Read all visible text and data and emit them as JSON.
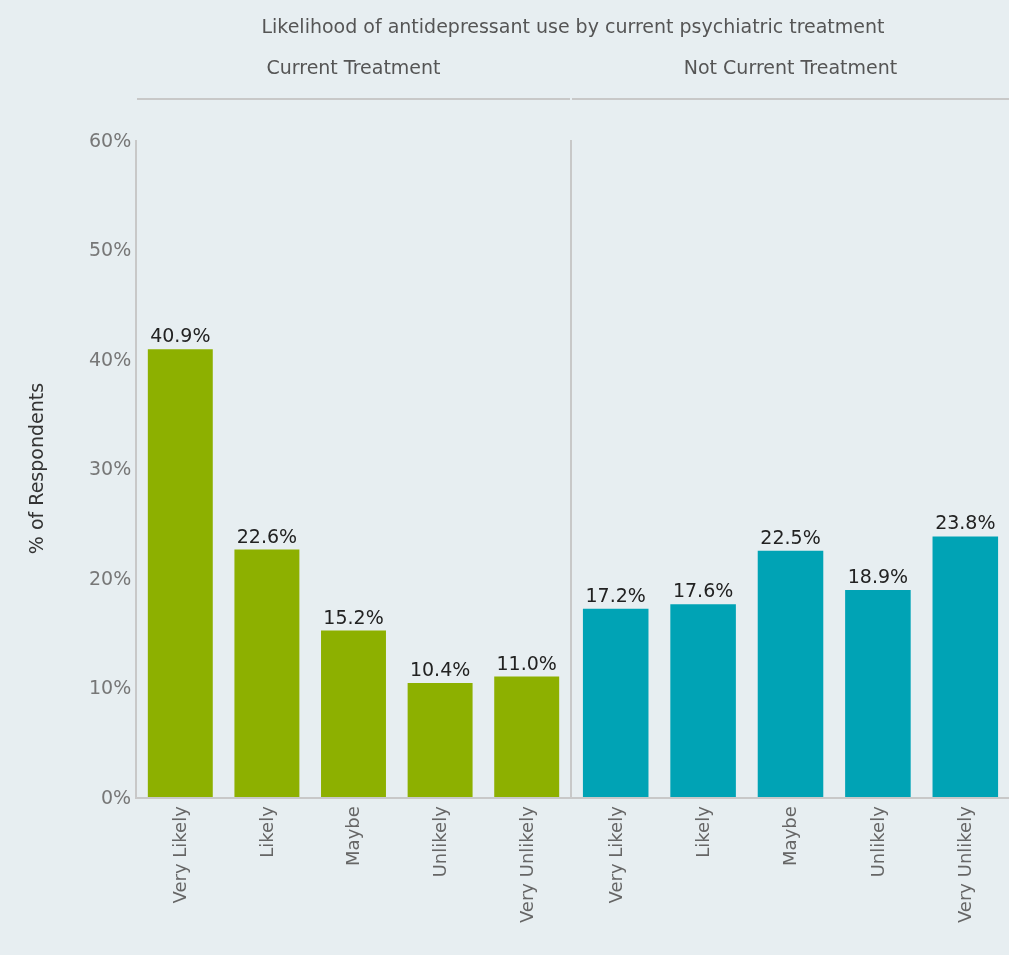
{
  "chart_data": [
    {
      "type": "bar",
      "title": "Likelihood of antidepressant use by current psychiatric treatment",
      "subtitle": "Current Treatment",
      "ylabel": "% of Respondents",
      "categories": [
        "Very Likely",
        "Likely",
        "Maybe",
        "Unlikely",
        "Very Unlikely"
      ],
      "values": [
        40.9,
        22.6,
        15.2,
        10.4,
        11.0
      ],
      "value_labels": [
        "40.9%",
        "22.6%",
        "15.2%",
        "10.4%",
        "11.0%"
      ],
      "color": "#8db000",
      "ylim": [
        0,
        60
      ],
      "yticks": [
        {
          "value": 0,
          "label": "0%"
        },
        {
          "value": 10,
          "label": "10%"
        },
        {
          "value": 20,
          "label": "20%"
        },
        {
          "value": 30,
          "label": "30%"
        },
        {
          "value": 40,
          "label": "40%"
        },
        {
          "value": 50,
          "label": "50%"
        },
        {
          "value": 60,
          "label": "60%"
        }
      ]
    },
    {
      "type": "bar",
      "subtitle": "Not Current Treatment",
      "categories": [
        "Very Likely",
        "Likely",
        "Maybe",
        "Unlikely",
        "Very Unlikely"
      ],
      "values": [
        17.2,
        17.6,
        22.5,
        18.9,
        23.8
      ],
      "value_labels": [
        "17.2%",
        "17.6%",
        "22.5%",
        "18.9%",
        "23.8%"
      ],
      "color": "#00a3b5",
      "ylim": [
        0,
        60
      ],
      "yticks": [
        {
          "value": 0,
          "label": null
        },
        {
          "value": 10,
          "label": null
        },
        {
          "value": 20,
          "label": null
        },
        {
          "value": 30,
          "label": null
        },
        {
          "value": 40,
          "label": null
        },
        {
          "value": 50,
          "label": null
        },
        {
          "value": 60,
          "label": null
        }
      ],
      "tick_labels": "x"
    }
  ]
}
